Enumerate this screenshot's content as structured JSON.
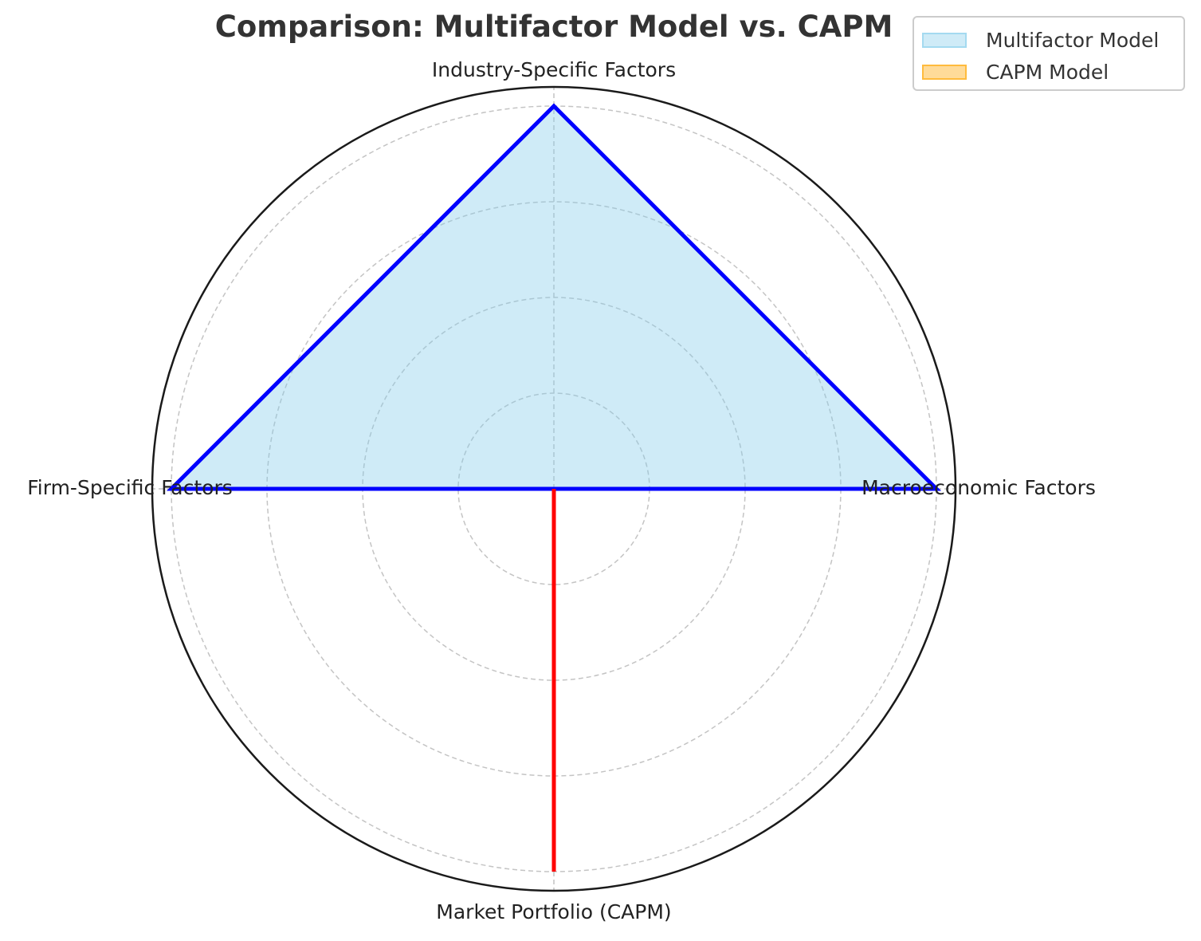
{
  "chart_data": {
    "type": "radar",
    "title": "Comparison: Multifactor Model vs. CAPM",
    "categories": [
      "Macroeconomic Factors",
      "Industry-Specific Factors",
      "Firm-Specific Factors",
      "Market Portfolio (CAPM)"
    ],
    "rlim": [
      0,
      4.2
    ],
    "rticks": [
      1,
      2,
      3,
      4
    ],
    "grid": true,
    "legend_position": "top-right",
    "series": [
      {
        "name": "Multifactor Model",
        "values": [
          4,
          4,
          4,
          0
        ],
        "fill_color": "#87ceeb",
        "line_color": "#0000ff"
      },
      {
        "name": "CAPM Model",
        "values": [
          0,
          0,
          0,
          4
        ],
        "fill_color": "#ffa500",
        "line_color": "#ff0000"
      }
    ]
  }
}
